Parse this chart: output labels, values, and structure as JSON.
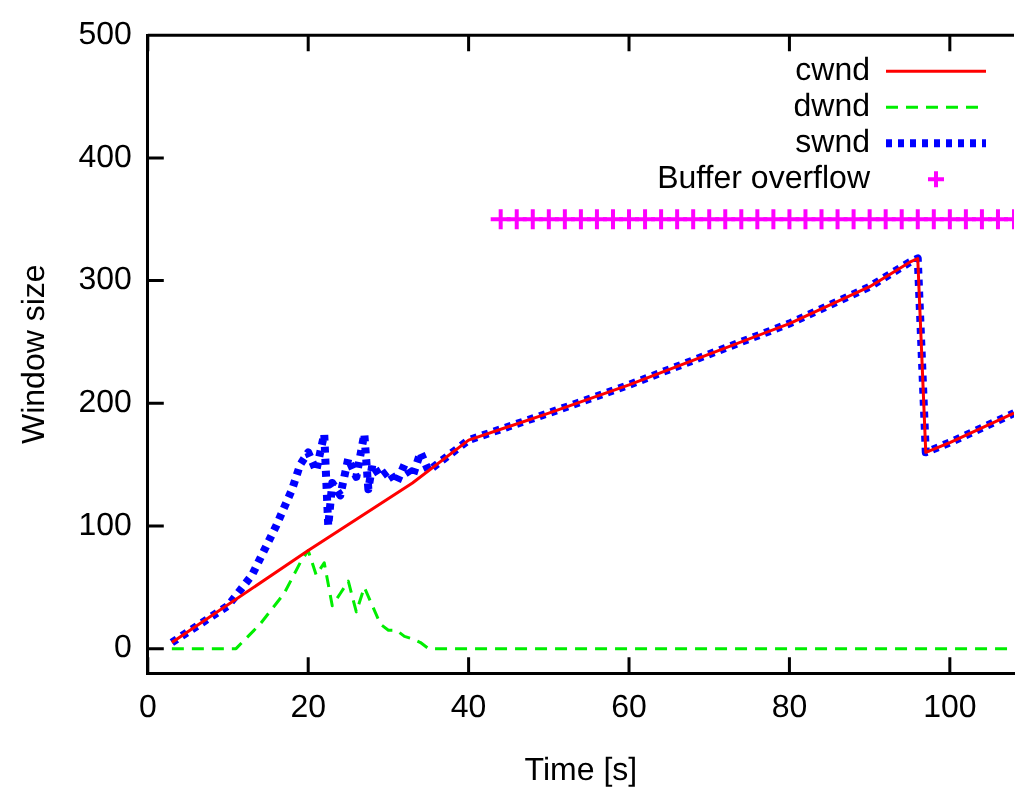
{
  "chart_data": {
    "type": "line",
    "xlabel": "Time [s]",
    "ylabel": "Window size",
    "xlim": [
      0,
      108
    ],
    "xticks": [
      0,
      20,
      40,
      60,
      80,
      100
    ],
    "ylim": [
      -20,
      500
    ],
    "yticks": [
      0,
      100,
      200,
      300,
      400,
      500
    ],
    "grid": false,
    "legend": "top right",
    "series": [
      {
        "name": "cwnd",
        "type": "line",
        "color": "#ff0000",
        "line_style": "solid",
        "x": [
          3,
          20,
          33,
          40,
          50,
          60,
          70,
          80,
          90,
          95,
          96,
          97,
          100,
          108
        ],
        "values": [
          5,
          80,
          135,
          170,
          192,
          215,
          240,
          265,
          295,
          315,
          318,
          160,
          168,
          192
        ]
      },
      {
        "name": "dwnd",
        "type": "line",
        "color": "#00ee00",
        "line_style": "dashed",
        "x": [
          3,
          11,
          14,
          17,
          19,
          20,
          21,
          22,
          23,
          24,
          25,
          26,
          27,
          28,
          29,
          30,
          31,
          32,
          33,
          34,
          35,
          108
        ],
        "values": [
          0,
          0,
          20,
          45,
          70,
          80,
          60,
          70,
          35,
          45,
          55,
          30,
          50,
          35,
          20,
          15,
          15,
          10,
          8,
          5,
          0,
          0
        ]
      },
      {
        "name": "swnd",
        "type": "line",
        "color": "#0000ff",
        "line_style": "dotted",
        "x": [
          3,
          10,
          13,
          16,
          18,
          19,
          20,
          21,
          22,
          22.5,
          23,
          24,
          25,
          26,
          27,
          27.5,
          28,
          29,
          30,
          31,
          32,
          33,
          34,
          35,
          36,
          40,
          50,
          60,
          70,
          80,
          90,
          95,
          96,
          97,
          100,
          108
        ],
        "values": [
          5,
          35,
          60,
          100,
          130,
          150,
          160,
          145,
          175,
          100,
          135,
          125,
          155,
          140,
          175,
          130,
          150,
          140,
          145,
          135,
          150,
          140,
          160,
          145,
          150,
          170,
          192,
          215,
          240,
          265,
          295,
          315,
          318,
          160,
          168,
          192
        ]
      },
      {
        "name": "Buffer overflow",
        "type": "scatter",
        "color": "#ff00ff",
        "marker": "cross",
        "x": [
          44,
          46,
          48,
          50,
          52,
          54,
          56,
          58,
          60,
          62,
          64,
          66,
          68,
          70,
          72,
          74,
          76,
          78,
          80,
          82,
          84,
          86,
          88,
          90,
          92,
          94,
          96,
          98,
          100,
          102,
          104,
          106,
          108
        ],
        "values": [
          350,
          350,
          350,
          350,
          350,
          350,
          350,
          350,
          350,
          350,
          350,
          350,
          350,
          350,
          350,
          350,
          350,
          350,
          350,
          350,
          350,
          350,
          350,
          350,
          350,
          350,
          350,
          350,
          350,
          350,
          350,
          350,
          350
        ]
      }
    ]
  }
}
